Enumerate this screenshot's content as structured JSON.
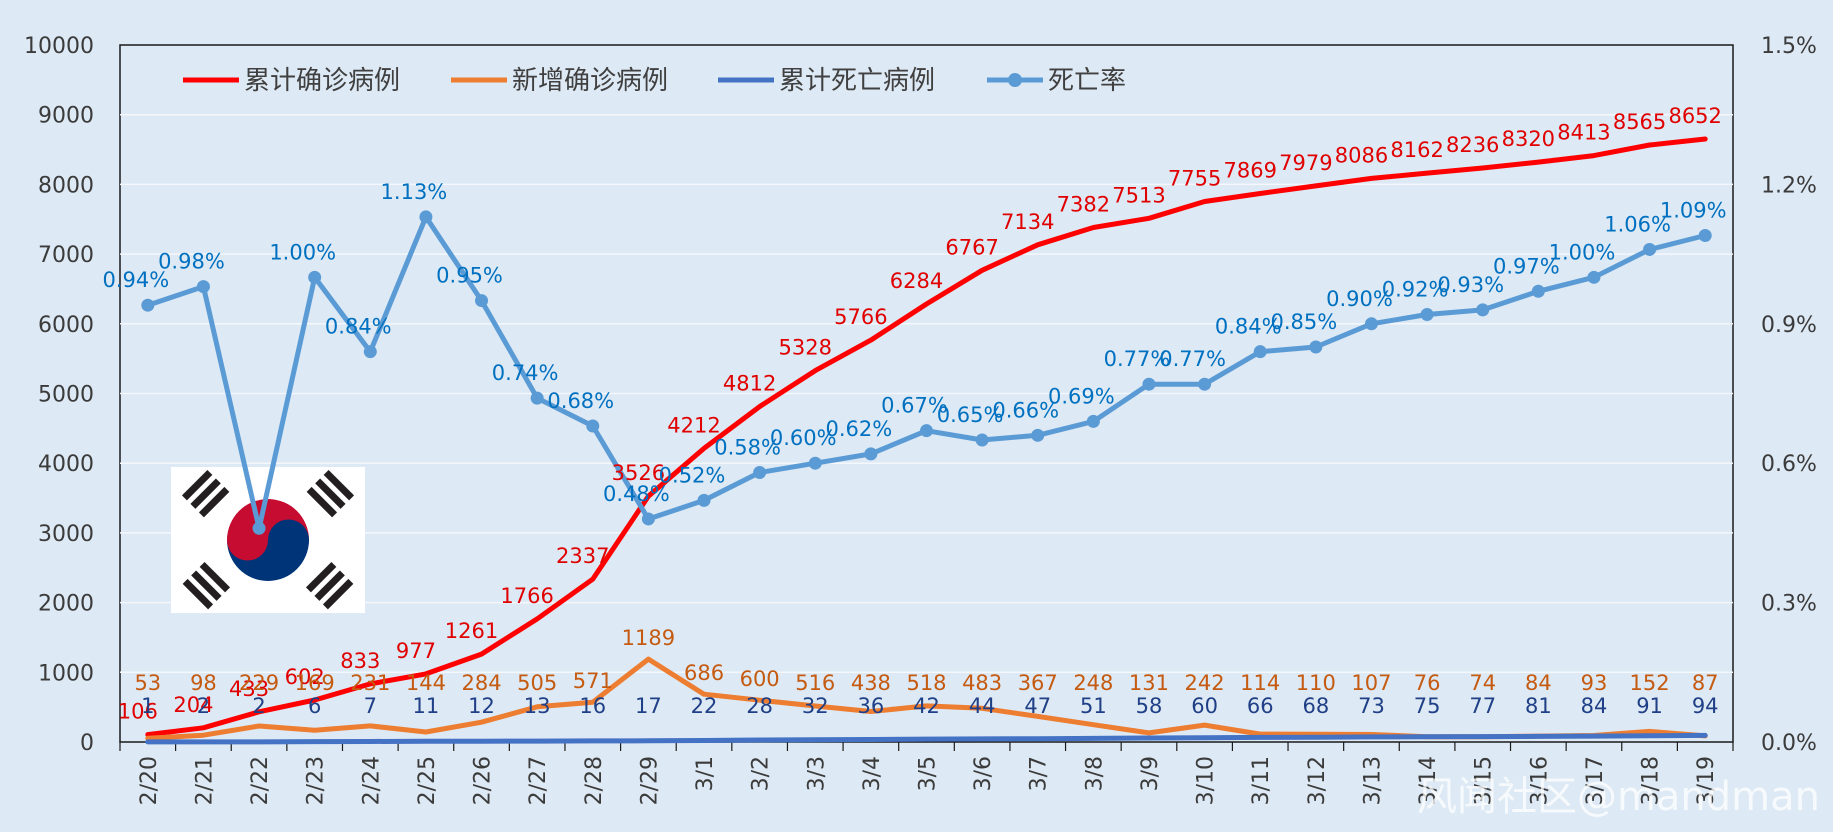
{
  "chart_data": {
    "type": "line",
    "title": "",
    "categories": [
      "2/20",
      "2/21",
      "2/22",
      "2/23",
      "2/24",
      "2/25",
      "2/26",
      "2/27",
      "2/28",
      "2/29",
      "3/1",
      "3/2",
      "3/3",
      "3/4",
      "3/5",
      "3/6",
      "3/7",
      "3/8",
      "3/9",
      "3/10",
      "3/11",
      "3/12",
      "3/13",
      "3/14",
      "3/15",
      "3/16",
      "3/17",
      "3/18",
      "3/19"
    ],
    "y_left": {
      "min": 0,
      "max": 10000,
      "ticks": [
        "0",
        "1000",
        "2000",
        "3000",
        "4000",
        "5000",
        "6000",
        "7000",
        "8000",
        "9000",
        "10000"
      ]
    },
    "y_right": {
      "min": 0,
      "max": 1.5,
      "ticks": [
        "0.0%",
        "0.3%",
        "0.6%",
        "0.9%",
        "1.2%",
        "1.5%"
      ]
    },
    "series": [
      {
        "name": "累计确诊病例",
        "axis": "left",
        "color": "#ff0000",
        "label_color": "#e00000",
        "values": [
          106,
          204,
          433,
          602,
          833,
          977,
          1261,
          1766,
          2337,
          3526,
          4212,
          4812,
          5328,
          5766,
          6284,
          6767,
          7134,
          7382,
          7513,
          7755,
          7869,
          7979,
          8086,
          8162,
          8236,
          8320,
          8413,
          8565,
          8652
        ],
        "labels": [
          "106",
          "204",
          "433",
          "602",
          "833",
          "977",
          "1261",
          "1766",
          "2337",
          "3526",
          "4212",
          "4812",
          "5328",
          "5766",
          "6284",
          "6767",
          "7134",
          "7382",
          "7513",
          "7755",
          "7869",
          "7979",
          "8086",
          "8162",
          "8236",
          "8320",
          "8413",
          "8565",
          "8652"
        ]
      },
      {
        "name": "新增确诊病例",
        "axis": "left",
        "color": "#ed7d31",
        "label_color": "#c55a11",
        "values": [
          53,
          98,
          229,
          169,
          231,
          144,
          284,
          505,
          571,
          1189,
          686,
          600,
          516,
          438,
          518,
          483,
          367,
          248,
          131,
          242,
          114,
          110,
          107,
          76,
          74,
          84,
          93,
          152,
          87
        ],
        "labels": [
          "53",
          "98",
          "229",
          "169",
          "231",
          "144",
          "284",
          "505",
          "571",
          "1189",
          "686",
          "600",
          "516",
          "438",
          "518",
          "483",
          "367",
          "248",
          "131",
          "242",
          "114",
          "110",
          "107",
          "76",
          "74",
          "84",
          "93",
          "152",
          "87"
        ]
      },
      {
        "name": "累计死亡病例",
        "axis": "left",
        "color": "#4472c4",
        "label_color": "#1f3f86",
        "values": [
          1,
          2,
          2,
          6,
          7,
          11,
          12,
          13,
          16,
          17,
          22,
          28,
          32,
          36,
          42,
          44,
          47,
          51,
          58,
          60,
          66,
          68,
          73,
          75,
          77,
          81,
          84,
          91,
          94
        ],
        "labels": [
          "1",
          "2",
          "2",
          "6",
          "7",
          "11",
          "12",
          "13",
          "16",
          "17",
          "22",
          "28",
          "32",
          "36",
          "42",
          "44",
          "47",
          "51",
          "58",
          "60",
          "66",
          "68",
          "73",
          "75",
          "77",
          "81",
          "84",
          "91",
          "94"
        ]
      },
      {
        "name": "死亡率",
        "axis": "right",
        "color": "#5b9bd5",
        "label_color": "#0070c0",
        "values": [
          0.94,
          0.98,
          0.46,
          1.0,
          0.84,
          1.13,
          0.95,
          0.74,
          0.68,
          0.48,
          0.52,
          0.58,
          0.6,
          0.62,
          0.67,
          0.65,
          0.66,
          0.69,
          0.77,
          0.77,
          0.84,
          0.85,
          0.9,
          0.92,
          0.93,
          0.97,
          1.0,
          1.06,
          1.09
        ],
        "labels": [
          "0.94%",
          "0.98%",
          "",
          "1.00%",
          "0.84%",
          "1.13%",
          "0.95%",
          "0.74%",
          "0.68%",
          "0.48%",
          "0.52%",
          "0.58%",
          "0.60%",
          "0.62%",
          "0.67%",
          "0.65%",
          "0.66%",
          "0.69%",
          "0.77%",
          "0.77%",
          "0.84%",
          "0.85%",
          "0.90%",
          "0.92%",
          "0.93%",
          "0.97%",
          "1.00%",
          "1.06%",
          "1.09%"
        ]
      }
    ],
    "legend": [
      "累计确诊病例",
      "新增确诊病例",
      "累计死亡病例",
      "死亡率"
    ],
    "grid": true
  },
  "watermark": "风闻社区@mandman",
  "flag": {
    "name": "South Korea flag",
    "colors": {
      "red": "#c60c30",
      "blue": "#003478",
      "black": "#231f20"
    }
  }
}
